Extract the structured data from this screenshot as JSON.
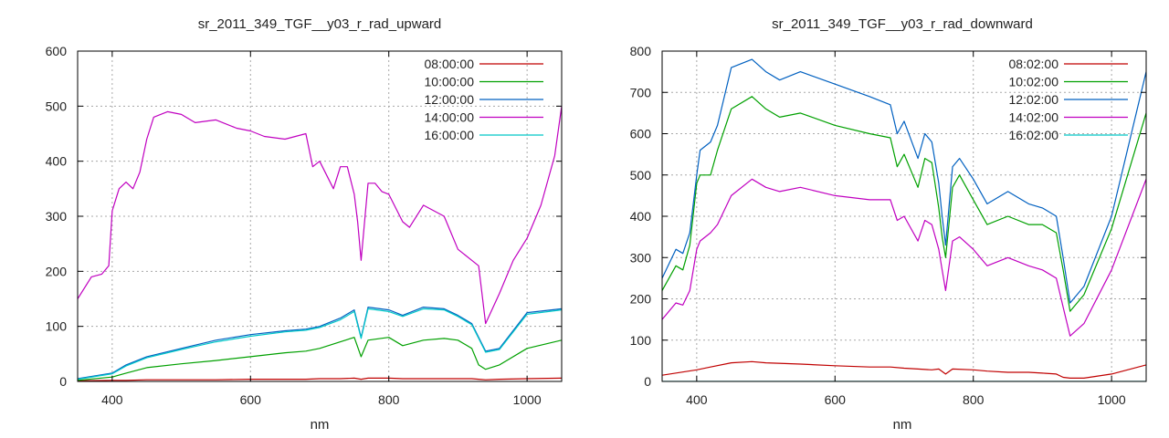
{
  "chart_data": [
    {
      "type": "line",
      "title": "sr_2011_349_TGF__y03_r_rad_upward",
      "xlabel": "nm",
      "ylabel": "",
      "xlim": [
        350,
        1050
      ],
      "ylim": [
        0,
        600
      ],
      "xticks": [
        400,
        600,
        800,
        1000
      ],
      "yticks": [
        0,
        100,
        200,
        300,
        400,
        500,
        600
      ],
      "grid": true,
      "legend": "top-right",
      "series": [
        {
          "name": "08:00:00",
          "color": "#c00000",
          "x": [
            350,
            400,
            420,
            450,
            500,
            550,
            600,
            650,
            680,
            700,
            730,
            750,
            760,
            770,
            800,
            820,
            850,
            880,
            900,
            920,
            930,
            940,
            960,
            1000,
            1050
          ],
          "y": [
            1,
            2,
            2,
            3,
            3,
            3,
            4,
            4,
            4,
            5,
            5,
            6,
            4,
            6,
            6,
            5,
            5,
            5,
            5,
            5,
            4,
            3,
            4,
            5,
            6
          ]
        },
        {
          "name": "10:00:00",
          "color": "#00a000",
          "x": [
            350,
            400,
            420,
            450,
            500,
            550,
            600,
            650,
            680,
            700,
            730,
            750,
            760,
            770,
            800,
            820,
            850,
            880,
            900,
            920,
            930,
            940,
            960,
            1000,
            1050
          ],
          "y": [
            2,
            8,
            15,
            25,
            32,
            38,
            45,
            52,
            55,
            60,
            72,
            80,
            45,
            75,
            80,
            65,
            75,
            78,
            75,
            60,
            30,
            22,
            30,
            60,
            75
          ]
        },
        {
          "name": "12:00:00",
          "color": "#0060c0",
          "x": [
            350,
            400,
            420,
            450,
            500,
            550,
            600,
            650,
            680,
            700,
            730,
            750,
            760,
            770,
            800,
            820,
            850,
            880,
            900,
            920,
            930,
            940,
            960,
            1000,
            1050
          ],
          "y": [
            5,
            15,
            30,
            45,
            60,
            75,
            85,
            92,
            95,
            100,
            115,
            130,
            80,
            135,
            130,
            120,
            135,
            132,
            120,
            105,
            80,
            55,
            60,
            125,
            132
          ]
        },
        {
          "name": "14:00:00",
          "color": "#c000c0",
          "x": [
            350,
            370,
            385,
            395,
            400,
            410,
            420,
            430,
            440,
            450,
            460,
            480,
            500,
            520,
            550,
            580,
            600,
            620,
            650,
            680,
            690,
            700,
            720,
            730,
            740,
            750,
            755,
            760,
            770,
            780,
            790,
            800,
            820,
            830,
            850,
            880,
            900,
            920,
            930,
            940,
            960,
            980,
            1000,
            1020,
            1040,
            1050
          ],
          "y": [
            150,
            190,
            195,
            210,
            310,
            350,
            362,
            350,
            380,
            440,
            480,
            490,
            485,
            470,
            475,
            460,
            455,
            445,
            440,
            450,
            390,
            400,
            350,
            390,
            390,
            340,
            290,
            220,
            360,
            360,
            345,
            340,
            290,
            280,
            320,
            300,
            240,
            220,
            210,
            105,
            160,
            220,
            260,
            320,
            410,
            500
          ]
        },
        {
          "name": "16:00:00",
          "color": "#00c8c8",
          "x": [
            350,
            400,
            420,
            450,
            500,
            550,
            600,
            650,
            680,
            700,
            730,
            750,
            760,
            770,
            800,
            820,
            850,
            880,
            900,
            920,
            930,
            940,
            960,
            1000,
            1050
          ],
          "y": [
            4,
            14,
            28,
            43,
            58,
            72,
            82,
            90,
            93,
            98,
            112,
            127,
            78,
            132,
            127,
            118,
            132,
            130,
            118,
            103,
            78,
            53,
            58,
            122,
            130
          ]
        }
      ]
    },
    {
      "type": "line",
      "title": "sr_2011_349_TGF__y03_r_rad_downward",
      "xlabel": "nm",
      "ylabel": "",
      "xlim": [
        350,
        1050
      ],
      "ylim": [
        0,
        800
      ],
      "xticks": [
        400,
        600,
        800,
        1000
      ],
      "yticks": [
        0,
        100,
        200,
        300,
        400,
        500,
        600,
        700,
        800
      ],
      "grid": true,
      "legend": "top-right",
      "series": [
        {
          "name": "08:02:00",
          "color": "#c00000",
          "x": [
            350,
            400,
            420,
            450,
            480,
            500,
            550,
            600,
            650,
            680,
            700,
            720,
            740,
            750,
            760,
            770,
            800,
            820,
            850,
            880,
            900,
            920,
            930,
            940,
            960,
            1000,
            1050
          ],
          "y": [
            15,
            28,
            35,
            45,
            48,
            45,
            42,
            38,
            35,
            35,
            32,
            30,
            28,
            30,
            18,
            30,
            28,
            25,
            22,
            22,
            20,
            18,
            10,
            8,
            8,
            18,
            40
          ]
        },
        {
          "name": "10:02:00",
          "color": "#00a000",
          "x": [
            350,
            370,
            380,
            390,
            400,
            405,
            420,
            430,
            450,
            480,
            500,
            520,
            550,
            600,
            650,
            680,
            690,
            700,
            720,
            730,
            740,
            750,
            755,
            760,
            770,
            780,
            800,
            820,
            850,
            880,
            900,
            920,
            930,
            940,
            960,
            1000,
            1050
          ],
          "y": [
            220,
            280,
            270,
            330,
            480,
            500,
            500,
            560,
            660,
            690,
            660,
            640,
            650,
            620,
            600,
            590,
            520,
            550,
            470,
            540,
            530,
            420,
            350,
            300,
            470,
            500,
            440,
            380,
            400,
            380,
            380,
            360,
            270,
            170,
            210,
            370,
            650
          ]
        },
        {
          "name": "12:02:00",
          "color": "#0060c0",
          "x": [
            350,
            370,
            380,
            390,
            400,
            405,
            420,
            430,
            450,
            480,
            500,
            520,
            550,
            600,
            650,
            680,
            690,
            700,
            720,
            730,
            740,
            750,
            755,
            760,
            770,
            780,
            800,
            820,
            850,
            880,
            900,
            920,
            930,
            940,
            960,
            1000,
            1050
          ],
          "y": [
            250,
            320,
            310,
            360,
            500,
            560,
            580,
            620,
            760,
            780,
            750,
            730,
            750,
            720,
            690,
            670,
            600,
            630,
            540,
            600,
            580,
            480,
            400,
            330,
            520,
            540,
            490,
            430,
            460,
            430,
            420,
            400,
            300,
            190,
            230,
            400,
            750
          ]
        },
        {
          "name": "14:02:00",
          "color": "#c000c0",
          "x": [
            350,
            370,
            380,
            390,
            400,
            405,
            420,
            430,
            450,
            480,
            500,
            520,
            550,
            600,
            650,
            680,
            690,
            700,
            720,
            730,
            740,
            750,
            755,
            760,
            770,
            780,
            800,
            820,
            850,
            880,
            900,
            920,
            930,
            940,
            960,
            1000,
            1050
          ],
          "y": [
            150,
            190,
            185,
            220,
            320,
            340,
            360,
            380,
            450,
            490,
            470,
            460,
            470,
            450,
            440,
            440,
            390,
            400,
            340,
            390,
            380,
            320,
            270,
            220,
            340,
            350,
            320,
            280,
            300,
            280,
            270,
            250,
            180,
            110,
            140,
            270,
            490
          ]
        },
        {
          "name": "16:02:00",
          "color": "#00c8c8",
          "x": [
            350,
            400,
            450,
            500,
            550,
            600,
            650,
            700,
            750,
            760,
            770,
            800,
            850,
            900,
            930,
            940,
            960,
            1000,
            1050
          ],
          "y": [
            0,
            0,
            0,
            0,
            0,
            0,
            0,
            0,
            0,
            0,
            0,
            0,
            0,
            0,
            0,
            0,
            0,
            0,
            0
          ]
        }
      ]
    }
  ]
}
